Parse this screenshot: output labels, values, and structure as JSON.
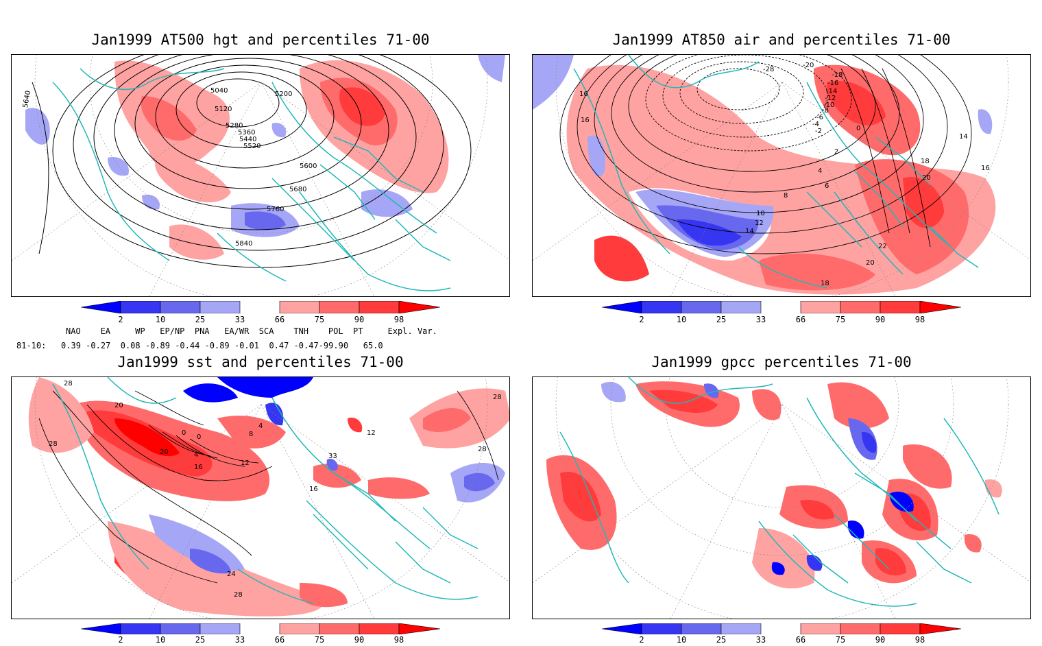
{
  "panels": [
    {
      "id": "p1",
      "title": "Jan1999 AT500 hgt and percentiles 71-00",
      "contour_labels": [
        "5040",
        "5120",
        "5200",
        "5280",
        "5360",
        "5440",
        "5520",
        "5600",
        "5680",
        "5760",
        "5840",
        "5640"
      ]
    },
    {
      "id": "p2",
      "title": "Jan1999 AT850 air and percentiles 71-00",
      "contour_labels": [
        "-28",
        "-20",
        "-18",
        "-16",
        "-14",
        "-12",
        "-10",
        "-8",
        "-6",
        "-4",
        "-2",
        "0",
        "2",
        "4",
        "6",
        "8",
        "10",
        "12",
        "14",
        "16",
        "16",
        "14",
        "16",
        "18",
        "20",
        "22",
        "20",
        "18"
      ]
    },
    {
      "id": "p3",
      "title": "Jan1999 sst and percentiles 71-00",
      "contour_labels": [
        "28",
        "28",
        "20",
        "20",
        "0",
        "0",
        "4",
        "8",
        "4",
        "16",
        "12",
        "16",
        "33",
        "12",
        "28",
        "28",
        "24",
        "28"
      ]
    },
    {
      "id": "p4",
      "title": "Jan1999 gpcc percentiles 71-00",
      "contour_labels": []
    }
  ],
  "colorbar": {
    "labels": [
      "2",
      "10",
      "25",
      "33",
      "66",
      "75",
      "90",
      "98"
    ],
    "colors": {
      "blue_extreme": "#0000ff",
      "blue_1": "#3535f2",
      "blue_2": "#6868ef",
      "blue_3": "#a6a6f7",
      "red_1": "#ffa2a2",
      "red_2": "#ff6b6b",
      "red_3": "#ff3b3b",
      "red_extreme": "#ff0000"
    }
  },
  "indices": {
    "header": "NAO    EA     WP   EP/NP  PNA   EA/WR  SCA    TNH    POL  PT     Expl. Var.",
    "row": "81-10:   0.39 -0.27  0.08 -0.89 -0.44 -0.89 -0.01  0.47 -0.47-99.90   65.0"
  },
  "map_colors": {
    "coast": "#20b8b8",
    "contour": "#000000",
    "grid": "#888888"
  }
}
